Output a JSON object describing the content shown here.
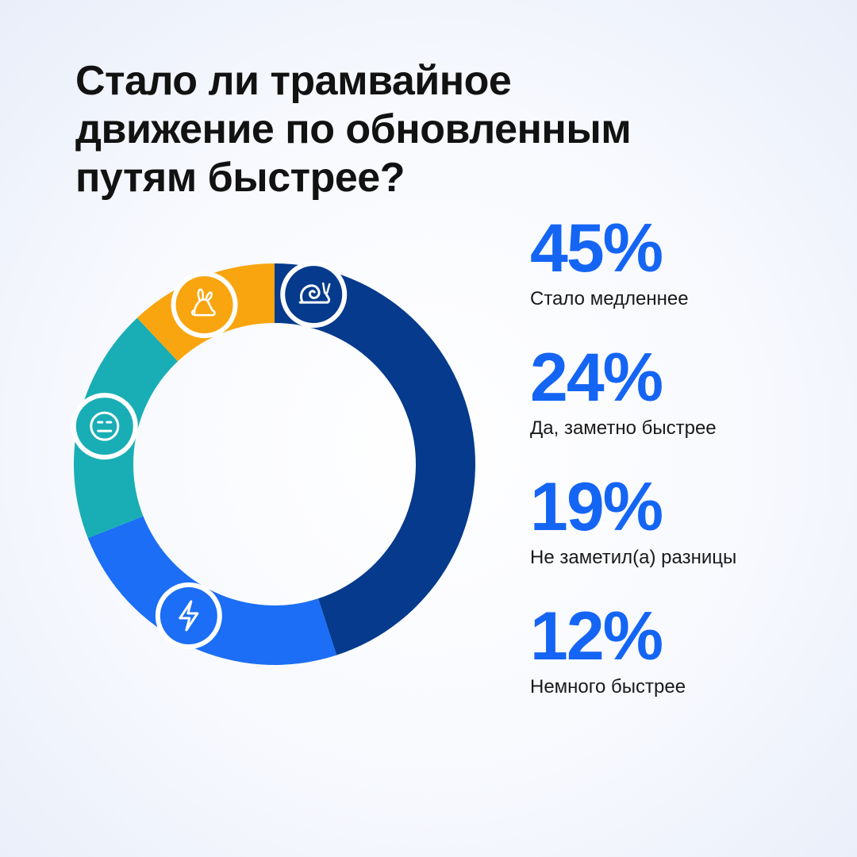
{
  "title_lines": [
    "Стало ли трамвайное",
    "движение по обновленным",
    "путям быстрее?"
  ],
  "chart_data": {
    "type": "pie",
    "style": "donut",
    "title": "Стало ли трамвайное движение по обновленным путям быстрее?",
    "categories": [
      "Стало медленнее",
      "Да, заметно быстрее",
      "Не заметил(а) разницы",
      "Немного быстрее"
    ],
    "values": [
      45,
      24,
      19,
      12
    ],
    "value_labels": [
      "45%",
      "24%",
      "19%",
      "12%"
    ],
    "colors": [
      "#053a8c",
      "#1b6ef5",
      "#19aeb5",
      "#f9a50f"
    ],
    "icons": [
      "snail-icon",
      "lightning-icon",
      "neutral-face-icon",
      "rabbit-icon"
    ],
    "legend_position": "right"
  }
}
